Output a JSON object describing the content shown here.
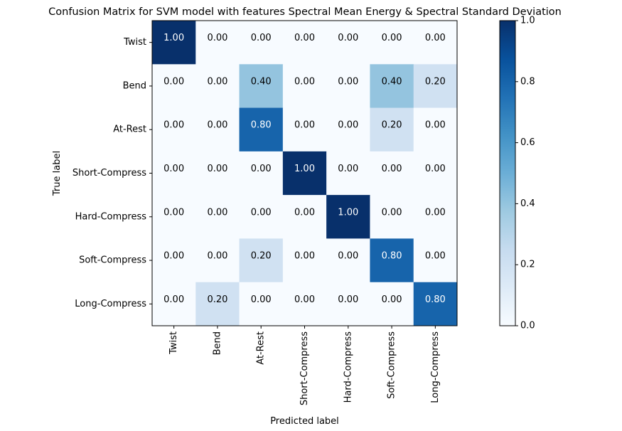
{
  "chart_data": {
    "type": "heatmap",
    "title": "Confusion Matrix for SVM model with features Spectral Mean Energy & Spectral Standard Deviation",
    "xlabel": "Predicted label",
    "ylabel": "True label",
    "x_categories": [
      "Twist",
      "Bend",
      "At-Rest",
      "Short-Compress",
      "Hard-Compress",
      "Soft-Compress",
      "Long-Compress"
    ],
    "y_categories": [
      "Twist",
      "Bend",
      "At-Rest",
      "Short-Compress",
      "Hard-Compress",
      "Soft-Compress",
      "Long-Compress"
    ],
    "values": [
      [
        1.0,
        0.0,
        0.0,
        0.0,
        0.0,
        0.0,
        0.0
      ],
      [
        0.0,
        0.0,
        0.4,
        0.0,
        0.0,
        0.4,
        0.2
      ],
      [
        0.0,
        0.0,
        0.8,
        0.0,
        0.0,
        0.2,
        0.0
      ],
      [
        0.0,
        0.0,
        0.0,
        1.0,
        0.0,
        0.0,
        0.0
      ],
      [
        0.0,
        0.0,
        0.0,
        0.0,
        1.0,
        0.0,
        0.0
      ],
      [
        0.0,
        0.0,
        0.2,
        0.0,
        0.0,
        0.8,
        0.0
      ],
      [
        0.0,
        0.2,
        0.0,
        0.0,
        0.0,
        0.0,
        0.8
      ]
    ],
    "value_format": "2 decimals",
    "colormap": "Blues",
    "colorbar": {
      "range": [
        0.0,
        1.0
      ],
      "ticks": [
        "0.0",
        "0.2",
        "0.4",
        "0.6",
        "0.8",
        "1.0"
      ],
      "placement": "right"
    },
    "grid": false,
    "colors": {
      "low": "#f7fbff",
      "high": "#08306b",
      "text_dark": "#000000",
      "text_light": "#ffffff"
    }
  }
}
